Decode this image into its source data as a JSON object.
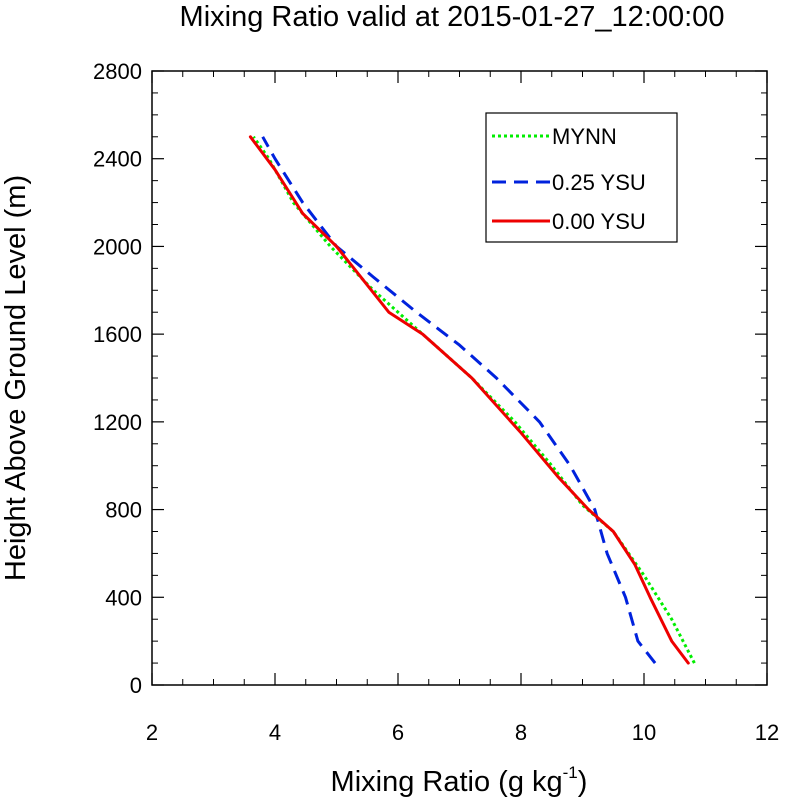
{
  "chart_data": {
    "type": "line",
    "title": "Mixing Ratio valid at 2015-01-27_12:00:00",
    "xlabel": "Mixing Ratio (g kg",
    "xlabel_sup": "-1",
    "xlabel_end": ")",
    "ylabel": "Height Above Ground Level (m)",
    "xlim": [
      2,
      12
    ],
    "ylim": [
      0,
      2800
    ],
    "x_ticks": [
      2,
      4,
      6,
      8,
      10,
      12
    ],
    "y_ticks": [
      0,
      400,
      800,
      1200,
      1600,
      2000,
      2400,
      2800
    ],
    "grid": false,
    "legend_position": "top-right",
    "series": [
      {
        "name": "MYNN",
        "color": "#00ee00",
        "style": "dotted",
        "points": [
          [
            10.82,
            100
          ],
          [
            10.45,
            300
          ],
          [
            10.0,
            500
          ],
          [
            9.5,
            700
          ],
          [
            9.0,
            820
          ],
          [
            8.5,
            1000
          ],
          [
            7.9,
            1200
          ],
          [
            7.2,
            1400
          ],
          [
            6.4,
            1600
          ],
          [
            5.6,
            1800
          ],
          [
            4.9,
            2000
          ],
          [
            4.3,
            2200
          ],
          [
            3.9,
            2400
          ],
          [
            3.65,
            2500
          ]
        ]
      },
      {
        "name": "0.25 YSU",
        "color": "#0022dd",
        "style": "dashed",
        "points": [
          [
            10.18,
            100
          ],
          [
            9.9,
            200
          ],
          [
            9.7,
            400
          ],
          [
            9.4,
            600
          ],
          [
            9.2,
            800
          ],
          [
            8.8,
            1000
          ],
          [
            8.3,
            1200
          ],
          [
            7.6,
            1400
          ],
          [
            7.0,
            1550
          ],
          [
            6.3,
            1700
          ],
          [
            5.6,
            1860
          ],
          [
            5.0,
            2000
          ],
          [
            4.45,
            2200
          ],
          [
            4.0,
            2400
          ],
          [
            3.8,
            2500
          ]
        ]
      },
      {
        "name": "0.00 YSU",
        "color": "#ee0000",
        "style": "solid",
        "points": [
          [
            10.72,
            100
          ],
          [
            10.45,
            200
          ],
          [
            10.1,
            400
          ],
          [
            9.85,
            550
          ],
          [
            9.5,
            700
          ],
          [
            9.1,
            800
          ],
          [
            8.6,
            950
          ],
          [
            8.0,
            1150
          ],
          [
            7.2,
            1400
          ],
          [
            6.4,
            1600
          ],
          [
            5.85,
            1700
          ],
          [
            5.0,
            2000
          ],
          [
            4.45,
            2150
          ],
          [
            4.0,
            2350
          ],
          [
            3.6,
            2500
          ]
        ]
      }
    ]
  }
}
